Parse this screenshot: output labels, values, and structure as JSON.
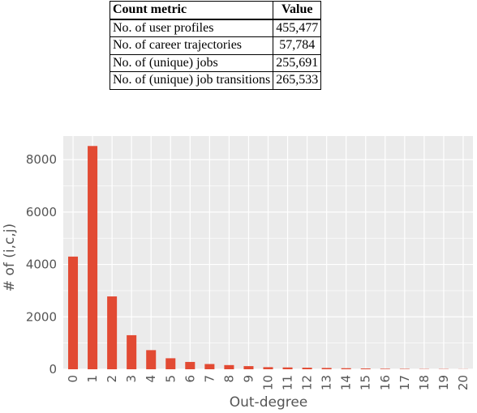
{
  "table": {
    "headers": [
      "Count metric",
      "Value"
    ],
    "rows": [
      {
        "metric": "No. of user profiles",
        "value": "455,477"
      },
      {
        "metric": "No. of career trajectories",
        "value": "57,784"
      },
      {
        "metric": "No. of (unique) jobs",
        "value": "255,691"
      },
      {
        "metric": "No. of (unique) job transitions",
        "value": "265,533"
      }
    ]
  },
  "chart_data": {
    "type": "bar",
    "title": "",
    "xlabel": "Out-degree",
    "ylabel": "# of (i,c,j)",
    "categories": [
      "0",
      "1",
      "2",
      "3",
      "4",
      "5",
      "6",
      "7",
      "8",
      "9",
      "10",
      "11",
      "12",
      "13",
      "14",
      "15",
      "16",
      "17",
      "18",
      "19",
      "20"
    ],
    "values": [
      4300,
      8520,
      2780,
      1300,
      730,
      420,
      280,
      200,
      160,
      120,
      80,
      70,
      60,
      50,
      40,
      30,
      20,
      15,
      10,
      10,
      5
    ],
    "ylim": [
      0,
      8900
    ],
    "yticks": [
      0,
      2000,
      4000,
      6000,
      8000
    ],
    "grid": true,
    "colors": {
      "bar": "#E24A33",
      "panel": "#EBEBEB",
      "grid": "#FFFFFF",
      "text": "#555555"
    }
  }
}
